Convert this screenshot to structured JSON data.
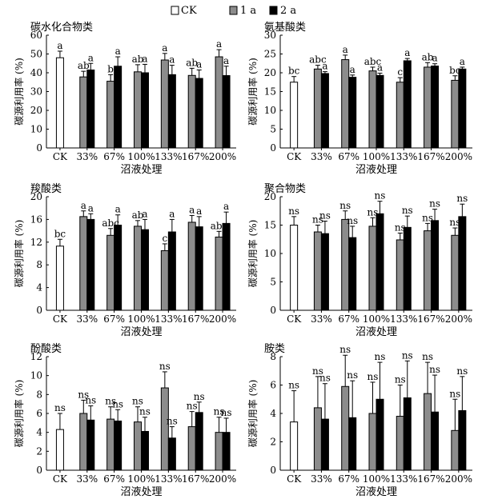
{
  "legend": {
    "items": [
      {
        "label": "CK",
        "fill": "#ffffff"
      },
      {
        "label": "1 a",
        "fill": "#8c8c8c"
      },
      {
        "label": "2 a",
        "fill": "#000000"
      }
    ]
  },
  "colors": {
    "ck": "#ffffff",
    "year1": "#8c8c8c",
    "year2": "#000000",
    "axis": "#000000"
  },
  "chart_data": [
    {
      "type": "bar",
      "title": "碳水化合物类",
      "xlabel": "沼液处理",
      "ylabel": "碳源利用率 (%)",
      "ylim": [
        0,
        60
      ],
      "yticks": [
        0,
        10,
        20,
        30,
        40,
        50,
        60
      ],
      "categories": [
        "CK",
        "33%",
        "67%",
        "100%",
        "133%",
        "167%",
        "200%"
      ],
      "ck": {
        "value": 48,
        "err": 3.5,
        "label": "a"
      },
      "series": [
        {
          "name": "1 a",
          "values": [
            null,
            37.8,
            35.5,
            40.5,
            46.8,
            38.6,
            48.5
          ],
          "errors": [
            null,
            3.0,
            3.5,
            3.8,
            3.5,
            3.8,
            3.8
          ],
          "labels": [
            null,
            "ab",
            "b",
            "ab",
            "a",
            "ab",
            "a"
          ]
        },
        {
          "name": "2 a",
          "values": [
            null,
            41.5,
            43.5,
            40,
            39,
            37,
            38.5
          ],
          "errors": [
            null,
            3.5,
            5,
            4.5,
            5,
            4.5,
            5
          ],
          "labels": [
            null,
            "a",
            "a",
            "a",
            "a",
            "a",
            "a"
          ]
        }
      ]
    },
    {
      "type": "bar",
      "title": "氨基酸类",
      "xlabel": "沼液处理",
      "ylabel": "碳源利用率 (%)",
      "ylim": [
        0,
        30
      ],
      "yticks": [
        0,
        5,
        10,
        15,
        20,
        25,
        30
      ],
      "categories": [
        "CK",
        "33%",
        "67%",
        "100%",
        "133%",
        "167%",
        "200%"
      ],
      "ck": {
        "value": 17.5,
        "err": 1.5,
        "label": "bc"
      },
      "series": [
        {
          "name": "1 a",
          "values": [
            null,
            21,
            23.5,
            20.5,
            17.5,
            21.5,
            18
          ],
          "errors": [
            null,
            1.0,
            1.2,
            1.0,
            1.2,
            1.2,
            1.2
          ],
          "labels": [
            null,
            "abc",
            "a",
            "abc",
            "c",
            "ab",
            "bc"
          ]
        },
        {
          "name": "2 a",
          "values": [
            null,
            19.8,
            18.8,
            19.3,
            23.2,
            21.8,
            21
          ],
          "errors": [
            null,
            0.5,
            0.6,
            0.6,
            0.6,
            0.6,
            0.5
          ],
          "labels": [
            null,
            "a",
            "a",
            "a",
            "a",
            "a",
            "a"
          ]
        }
      ]
    },
    {
      "type": "bar",
      "title": "羧酸类",
      "xlabel": "沼液处理",
      "ylabel": "碳源利用率 (%)",
      "ylim": [
        0,
        20
      ],
      "yticks": [
        0,
        4,
        8,
        12,
        16,
        20
      ],
      "categories": [
        "CK",
        "33%",
        "67%",
        "100%",
        "133%",
        "167%",
        "200%"
      ],
      "ck": {
        "value": 11.3,
        "err": 1.2,
        "label": "bc"
      },
      "series": [
        {
          "name": "1 a",
          "values": [
            null,
            16.5,
            13.2,
            14.8,
            10.5,
            15.5,
            12.9
          ],
          "errors": [
            null,
            1.0,
            1.2,
            1.0,
            1.2,
            1.2,
            1.0
          ],
          "labels": [
            null,
            "a",
            "abc",
            "ab",
            "c",
            "a",
            "abc"
          ]
        },
        {
          "name": "2 a",
          "values": [
            null,
            16,
            15,
            14.2,
            13.8,
            14.7,
            15.3
          ],
          "errors": [
            null,
            1.0,
            1.8,
            1.8,
            2.2,
            1.8,
            2.0
          ],
          "labels": [
            null,
            "a",
            "a",
            "a",
            "a",
            "a",
            "a"
          ]
        }
      ]
    },
    {
      "type": "bar",
      "title": "聚合物类",
      "xlabel": "沼液处理",
      "ylabel": "碳源利用率 (%)",
      "ylim": [
        0,
        20
      ],
      "yticks": [
        0,
        5,
        10,
        15,
        20
      ],
      "categories": [
        "CK",
        "33%",
        "67%",
        "100%",
        "133%",
        "167%",
        "200%"
      ],
      "ck": {
        "value": 15,
        "err": 1.5,
        "label": "ns"
      },
      "series": [
        {
          "name": "1 a",
          "values": [
            null,
            13.8,
            16,
            14.8,
            12.4,
            14,
            13.2
          ],
          "errors": [
            null,
            1.2,
            1.5,
            1.5,
            1.2,
            1.3,
            1.3
          ],
          "labels": [
            null,
            "ns",
            "ns",
            "ns",
            "ns",
            "ns",
            "ns"
          ]
        },
        {
          "name": "2 a",
          "values": [
            null,
            13.5,
            12.8,
            17,
            14.6,
            15.8,
            16.5
          ],
          "errors": [
            null,
            2.2,
            2.0,
            2.2,
            2.0,
            2.0,
            2.2
          ],
          "labels": [
            null,
            "ns",
            "ns",
            "ns",
            "ns",
            "ns",
            "ns"
          ]
        }
      ]
    },
    {
      "type": "bar",
      "title": "酚酸类",
      "xlabel": "沼液处理",
      "ylabel": "碳源利用率 (%)",
      "ylim": [
        0,
        12
      ],
      "yticks": [
        0,
        2,
        4,
        6,
        8,
        10,
        12
      ],
      "categories": [
        "CK",
        "33%",
        "67%",
        "100%",
        "133%",
        "167%",
        "200%"
      ],
      "ck": {
        "value": 4.3,
        "err": 1.7,
        "label": "ns"
      },
      "series": [
        {
          "name": "1 a",
          "values": [
            null,
            6,
            5.4,
            5.1,
            8.7,
            4.6,
            4
          ],
          "errors": [
            null,
            1.4,
            1.3,
            1.6,
            1.7,
            1.6,
            1.6
          ],
          "labels": [
            null,
            "ns",
            "ns",
            "ns",
            "ns",
            "ns",
            "ns"
          ]
        },
        {
          "name": "2 a",
          "values": [
            null,
            5.3,
            5.2,
            4.1,
            3.4,
            6.1,
            4
          ],
          "errors": [
            null,
            1.5,
            1.2,
            1.5,
            1.2,
            1.1,
            1.5
          ],
          "labels": [
            null,
            "ns",
            "ns",
            "ns",
            "ns",
            "ns",
            "ns"
          ]
        }
      ]
    },
    {
      "type": "bar",
      "title": "胺类",
      "xlabel": "沼液处理",
      "ylabel": "碳源利用率 (%)",
      "ylim": [
        0,
        8
      ],
      "yticks": [
        0,
        2,
        4,
        6,
        8
      ],
      "categories": [
        "CK",
        "33%",
        "67%",
        "100%",
        "133%",
        "167%",
        "200%"
      ],
      "ck": {
        "value": 3.4,
        "err": 2.2,
        "label": "ns"
      },
      "series": [
        {
          "name": "1 a",
          "values": [
            null,
            4.4,
            5.9,
            4,
            3.8,
            5.4,
            2.8
          ],
          "errors": [
            null,
            2.2,
            2.2,
            2.2,
            2.2,
            2.2,
            2.2
          ],
          "labels": [
            null,
            "ns",
            "ns",
            "ns",
            "ns",
            "ns",
            "ns"
          ]
        },
        {
          "name": "2 a",
          "values": [
            null,
            3.6,
            3.7,
            5,
            5.1,
            4.1,
            4.2
          ],
          "errors": [
            null,
            2.5,
            2.6,
            2.6,
            2.6,
            2.6,
            2.4
          ],
          "labels": [
            null,
            "ns",
            "ns",
            "ns",
            "ns",
            "ns",
            "ns"
          ]
        }
      ]
    }
  ]
}
